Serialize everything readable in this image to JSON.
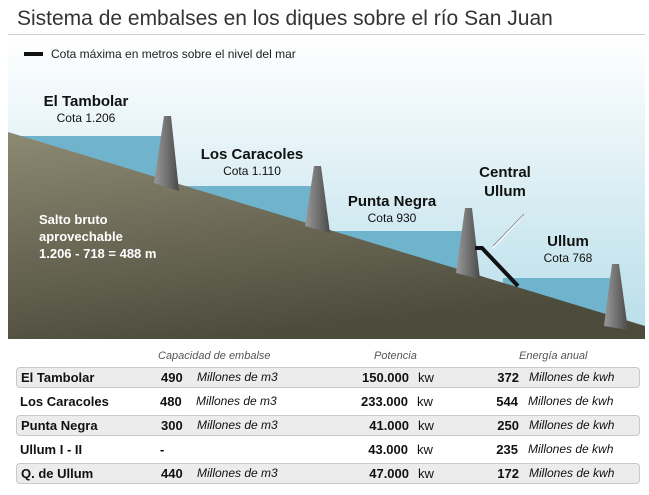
{
  "title": "Sistema de embalses en los diques sobre el río San Juan",
  "legend": {
    "label": "Cota máxima en metros sobre el nivel del mar"
  },
  "dams": [
    {
      "name": "El Tambolar",
      "cota": "Cota 1.206"
    },
    {
      "name": "Los Caracoles",
      "cota": "Cota 1.110"
    },
    {
      "name": "Punta Negra",
      "cota": "Cota 930"
    },
    {
      "name": "Ullum",
      "cota": "Cota 768"
    }
  ],
  "central": {
    "line1": "Central",
    "line2": "Ullum"
  },
  "salto": {
    "line1": "Salto bruto",
    "line2": "aprovechable",
    "line3": "1.206 - 718 = 488 m"
  },
  "table": {
    "headers": {
      "capacidad": "Capacidad de embalse",
      "potencia": "Potencia",
      "energia": "Energía anual"
    },
    "rows": [
      {
        "name": "El Tambolar",
        "cap": "490",
        "cap_unit": "Millones de m3",
        "pot": "150.000",
        "pot_unit": "kw",
        "en": "372",
        "en_unit": "Millones de kwh"
      },
      {
        "name": "Los Caracoles",
        "cap": "480",
        "cap_unit": "Millones de m3",
        "pot": "233.000",
        "pot_unit": "kw",
        "en": "544",
        "en_unit": "Millones de kwh"
      },
      {
        "name": "Punta Negra",
        "cap": "300",
        "cap_unit": "Millones de m3",
        "pot": "41.000",
        "pot_unit": "kw",
        "en": "250",
        "en_unit": "Millones de kwh"
      },
      {
        "name": "Ullum I - II",
        "cap": "-",
        "cap_unit": "",
        "pot": "43.000",
        "pot_unit": "kw",
        "en": "235",
        "en_unit": "Millones de kwh"
      },
      {
        "name": "Q. de Ullum",
        "cap": "440",
        "cap_unit": "Millones de m3",
        "pot": "47.000",
        "pot_unit": "kw",
        "en": "172",
        "en_unit": "Millones de kwh"
      }
    ]
  },
  "colors": {
    "sky_top": "#ffffff",
    "sky_bottom": "#b7dde9",
    "water": "#6fb3cc",
    "ground_light": "#8c8a72",
    "ground_dark": "#4d4b3c",
    "dam_light": "#8a8a8a",
    "dam_dark": "#4e4e4e"
  }
}
